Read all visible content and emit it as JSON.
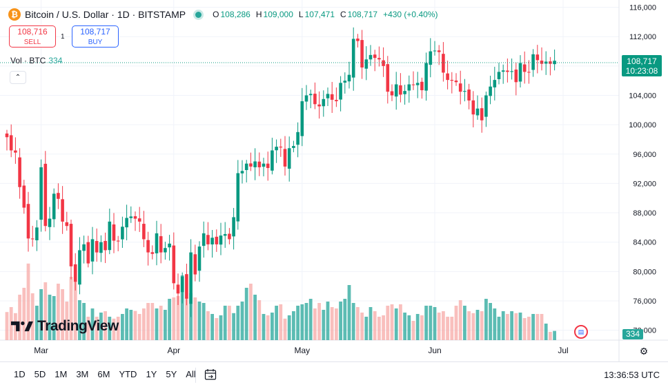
{
  "header": {
    "symbol_title": "Bitcoin / U.S. Dollar · 1D · BITSTAMP",
    "btc_glyph": "₿",
    "ohlc": [
      {
        "key": "O",
        "value": "108,286"
      },
      {
        "key": "H",
        "value": "109,000"
      },
      {
        "key": "L",
        "value": "107,471"
      },
      {
        "key": "C",
        "value": "108,717"
      }
    ],
    "change": "+430 (+0.40%)"
  },
  "trade": {
    "sell_price": "108,716",
    "sell_label": "SELL",
    "spread": "1",
    "buy_price": "108,717",
    "buy_label": "BUY"
  },
  "volume_label": {
    "text": "Vol · BTC",
    "value": "334"
  },
  "collapse_glyph": "⌃",
  "watermark": "TradingView",
  "price_badge": {
    "price": "108,717",
    "countdown": "10:23:08"
  },
  "volume_badge": "334",
  "bottom_bar": {
    "ranges": [
      "1D",
      "5D",
      "1M",
      "3M",
      "6M",
      "YTD",
      "1Y",
      "5Y",
      "All"
    ],
    "clock": "13:36:53 UTC"
  },
  "colors": {
    "up": "#089981",
    "down": "#f23645",
    "vol_up": "#26a69a",
    "vol_down": "#f7a9a7",
    "grid": "#f0f3fa",
    "accent_blue": "#2962ff"
  },
  "icons": {
    "calendar": "calendar-icon",
    "settings": "gear-icon",
    "event": "us-flag-event-icon"
  },
  "chart_data": {
    "type": "candlestick",
    "title": "Bitcoin / U.S. Dollar · 1D · BITSTAMP",
    "ylim": [
      72000,
      116000
    ],
    "y_ticks": [
      76000,
      80000,
      84000,
      88000,
      92000,
      96000,
      100000,
      104000,
      108000,
      112000,
      116000
    ],
    "y_tick_labels": [
      "76,000",
      "80,000",
      "84,000",
      "88,000",
      "92,000",
      "96,000",
      "100,000",
      "104,000",
      "108,000",
      "112,000",
      "116,000"
    ],
    "y_tick_label_partial": "72,000",
    "x_range": [
      "2025-02-21",
      "2025-07-08"
    ],
    "x_ticks": [
      {
        "date": "2025-03-01",
        "label": "Mar"
      },
      {
        "date": "2025-04-01",
        "label": "Apr"
      },
      {
        "date": "2025-05-01",
        "label": "May"
      },
      {
        "date": "2025-06-01",
        "label": "Jun"
      },
      {
        "date": "2025-07-01",
        "label": "Jul"
      }
    ],
    "last_price": 108717,
    "start_date": "2025-02-21",
    "close": [
      98300,
      96500,
      96200,
      91500,
      88700,
      84500,
      84400,
      86000,
      94200,
      86200,
      87200,
      90600,
      89900,
      86800,
      86200,
      80700,
      78600,
      82900,
      83700,
      81100,
      84400,
      82600,
      84000,
      82900,
      86800,
      84200,
      84100,
      86100,
      87300,
      87500,
      87200,
      86800,
      84400,
      82600,
      82400,
      85200,
      82600,
      83200,
      83800,
      78400,
      77000,
      79300,
      76300,
      82600,
      79600,
      83400,
      85200,
      83700,
      84600,
      83700,
      84900,
      85100,
      84400,
      87400,
      93400,
      93700,
      94700,
      94300,
      95000,
      94200,
      94700,
      94100,
      96500,
      97000,
      96900,
      94300,
      96800,
      97100,
      99000,
      103200,
      104000,
      104200,
      102800,
      102500,
      103500,
      104200,
      103400,
      103200,
      105700,
      106000,
      106800,
      111700,
      111400,
      107800,
      108900,
      109500,
      109100,
      108900,
      108000,
      104500,
      104000,
      105500,
      104100,
      104600,
      105500,
      105400,
      105700,
      104700,
      108400,
      110000,
      110100,
      109900,
      107100,
      106100,
      106000,
      105800,
      104500,
      104600,
      103300,
      101400,
      102200,
      100600,
      104000,
      105200,
      106100,
      107200,
      107400,
      107200,
      107300,
      105800,
      108400,
      107200,
      107100,
      109600,
      108800,
      108300,
      108600,
      108300,
      108717
    ],
    "volume_btc": [
      1020,
      1200,
      980,
      1650,
      1900,
      2780,
      1700,
      1250,
      1850,
      2100,
      1650,
      1600,
      2050,
      1850,
      1400,
      2300,
      2150,
      1450,
      1350,
      850,
      1150,
      850,
      1000,
      1050,
      850,
      780,
      850,
      950,
      1150,
      1100,
      1060,
      950,
      1150,
      1350,
      1350,
      1150,
      1250,
      1100,
      1500,
      1550,
      1600,
      2350,
      1550,
      1700,
      1550,
      1400,
      1350,
      1050,
      950,
      800,
      900,
      1250,
      1250,
      980,
      1250,
      1400,
      1900,
      2050,
      1650,
      1450,
      950,
      900,
      1000,
      1250,
      1300,
      780,
      900,
      1050,
      1250,
      1300,
      1350,
      1500,
      1150,
      1350,
      1100,
      1400,
      1200,
      1150,
      1400,
      1500,
      2000,
      1350,
      1200,
      1000,
      850,
      1200,
      1050,
      850,
      900,
      1250,
      1300,
      1150,
      1300,
      1000,
      900,
      700,
      950,
      900,
      1250,
      1250,
      1200,
      1000,
      1050,
      850,
      850,
      1250,
      1450,
      1250,
      1050,
      980,
      1100,
      1050,
      1500,
      1350,
      1150,
      850,
      1050,
      950,
      1050,
      980,
      1000,
      800,
      850,
      950,
      950,
      950,
      600,
      300,
      334
    ]
  }
}
